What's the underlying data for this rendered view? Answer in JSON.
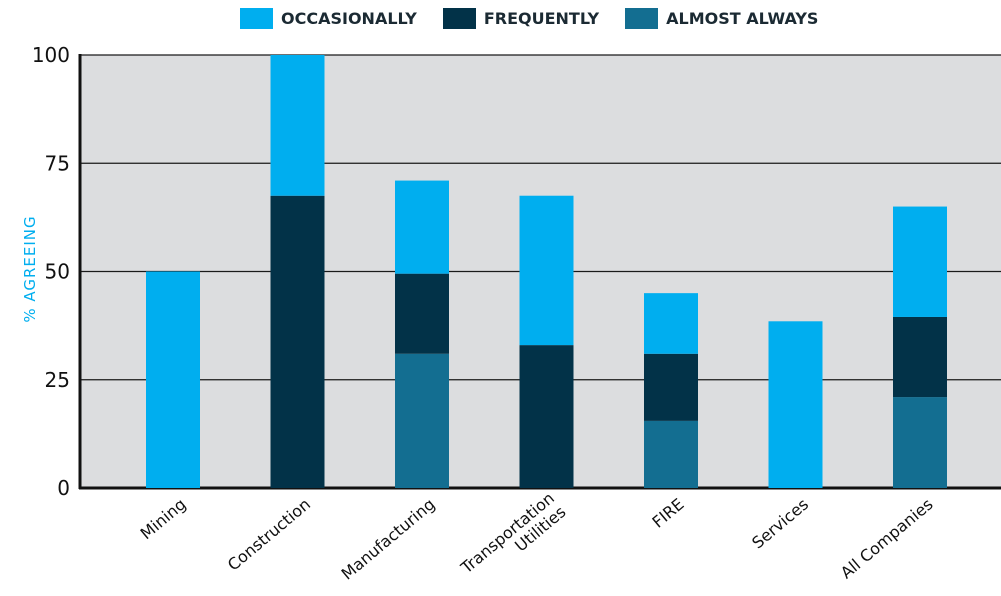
{
  "chart_data": {
    "type": "bar",
    "stacked": true,
    "title": "",
    "xlabel": "",
    "ylabel": "% AGREEING",
    "ylim": [
      0,
      100
    ],
    "yticks": [
      0,
      25,
      50,
      75,
      100
    ],
    "grid": true,
    "legend_position": "top",
    "categories": [
      "Mining",
      "Construction",
      "Manufacturing",
      "Transportation\nUtilities",
      "FIRE",
      "Services",
      "All Companies"
    ],
    "series": [
      {
        "name": "ALMOST ALWAYS",
        "color": "#136e91",
        "values": [
          0,
          0,
          31,
          0,
          15.5,
          0,
          21
        ]
      },
      {
        "name": "FREQUENTLY",
        "color": "#023248",
        "values": [
          0,
          67.5,
          18.5,
          33,
          15.5,
          0,
          18.5
        ]
      },
      {
        "name": "OCCASIONALLY",
        "color": "#00aeef",
        "values": [
          50,
          32.5,
          21.5,
          34.5,
          14,
          38.5,
          25.5
        ]
      }
    ],
    "legend_order": [
      "OCCASIONALLY",
      "FREQUENTLY",
      "ALMOST ALWAYS"
    ],
    "plot_background": "#dcdddf"
  }
}
